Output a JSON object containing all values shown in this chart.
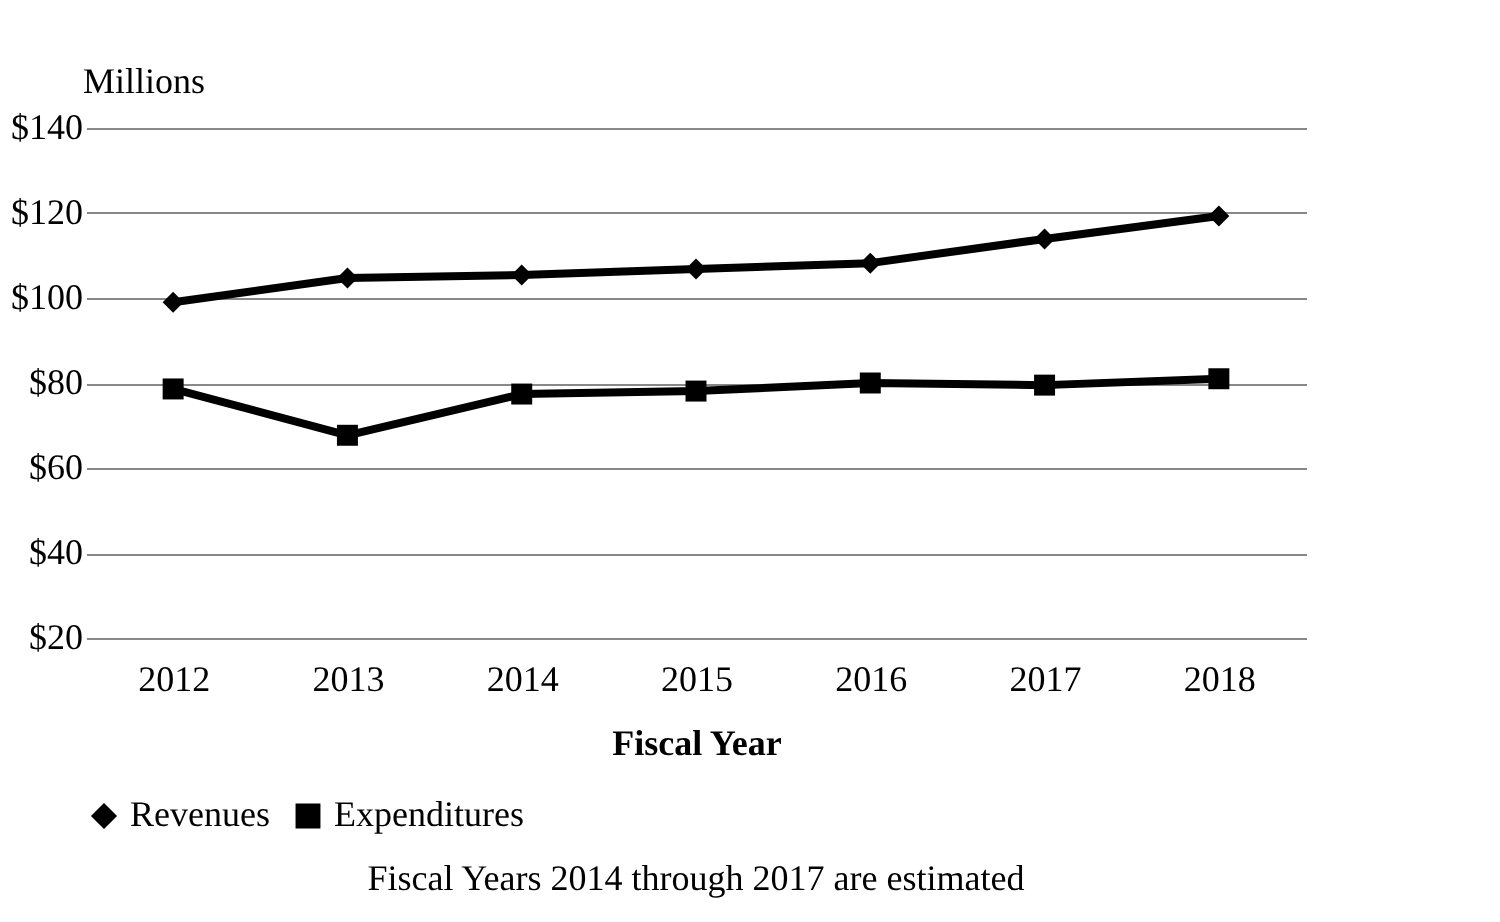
{
  "chart_data": {
    "type": "line",
    "xlabel": "Fiscal Year",
    "ylabel": "Millions",
    "categories": [
      "2012",
      "2013",
      "2014",
      "2015",
      "2016",
      "2017",
      "2018"
    ],
    "series": [
      {
        "name": "Revenues",
        "color": "#000000",
        "marker": "diamond",
        "values": [
          99,
          104.7,
          105.4,
          106.8,
          108.2,
          113.9,
          119.3
        ]
      },
      {
        "name": "Expenditures",
        "color": "#000000",
        "marker": "square",
        "values": [
          78.6,
          67.7,
          77.4,
          78.1,
          80,
          79.5,
          81
        ]
      }
    ],
    "ylim": [
      20,
      140
    ],
    "yticks": [
      {
        "value": 20,
        "label": "$20"
      },
      {
        "value": 40,
        "label": "$40"
      },
      {
        "value": 60,
        "label": "$60"
      },
      {
        "value": 80,
        "label": "$80"
      },
      {
        "value": 100,
        "label": "$100"
      },
      {
        "value": 120,
        "label": "$120"
      },
      {
        "value": 140,
        "label": "$140"
      }
    ],
    "grid": "y",
    "legend": "bottom",
    "line_style": "solid",
    "annotations": [
      "Fiscal Years 2014 through 2017 are estimated"
    ]
  }
}
